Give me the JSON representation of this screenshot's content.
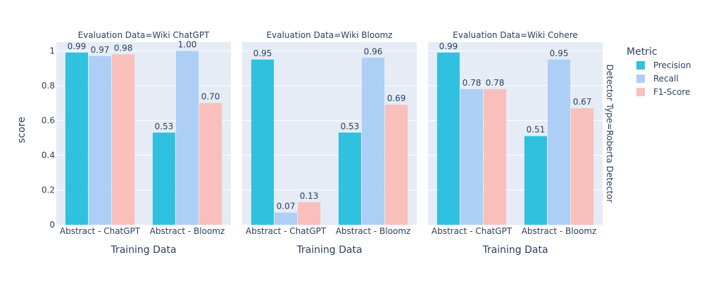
{
  "chart_data": {
    "type": "bar",
    "ylabel": "score",
    "xlabel": "Training Data",
    "ylim": [
      0,
      1.05
    ],
    "yticks": [
      0,
      0.2,
      0.4,
      0.6,
      0.8,
      1
    ],
    "ytick_labels": [
      "0",
      "0.2",
      "0.4",
      "0.6",
      "0.8",
      "1"
    ],
    "row_label": "Detector Type=Roberta Detector",
    "legend": {
      "title": "Metric",
      "placement": "right",
      "entries": [
        {
          "name": "Precision",
          "color": "#2fc1df"
        },
        {
          "name": "Recall",
          "color": "#aecff5"
        },
        {
          "name": "F1-Score",
          "color": "#f8bfbb"
        }
      ]
    },
    "categories": [
      "Abstract - ChatGPT",
      "Abstract - Bloomz"
    ],
    "facets": [
      {
        "title": "Evaluation Data=Wiki ChatGPT",
        "series": [
          {
            "name": "Precision",
            "values": [
              0.99,
              0.53
            ],
            "labels": [
              "0.99",
              "0.53"
            ]
          },
          {
            "name": "Recall",
            "values": [
              0.97,
              1.0
            ],
            "labels": [
              "0.97",
              "1.00"
            ]
          },
          {
            "name": "F1-Score",
            "values": [
              0.98,
              0.7
            ],
            "labels": [
              "0.98",
              "0.70"
            ]
          }
        ]
      },
      {
        "title": "Evaluation Data=Wiki Bloomz",
        "series": [
          {
            "name": "Precision",
            "values": [
              0.95,
              0.53
            ],
            "labels": [
              "0.95",
              "0.53"
            ]
          },
          {
            "name": "Recall",
            "values": [
              0.07,
              0.96
            ],
            "labels": [
              "0.07",
              "0.96"
            ]
          },
          {
            "name": "F1-Score",
            "values": [
              0.13,
              0.69
            ],
            "labels": [
              "0.13",
              "0.69"
            ]
          }
        ]
      },
      {
        "title": "Evaluation Data=Wiki Cohere",
        "series": [
          {
            "name": "Precision",
            "values": [
              0.99,
              0.51
            ],
            "labels": [
              "0.99",
              "0.51"
            ]
          },
          {
            "name": "Recall",
            "values": [
              0.78,
              0.95
            ],
            "labels": [
              "0.78",
              "0.95"
            ]
          },
          {
            "name": "F1-Score",
            "values": [
              0.78,
              0.67
            ],
            "labels": [
              "0.78",
              "0.67"
            ]
          }
        ]
      }
    ]
  }
}
